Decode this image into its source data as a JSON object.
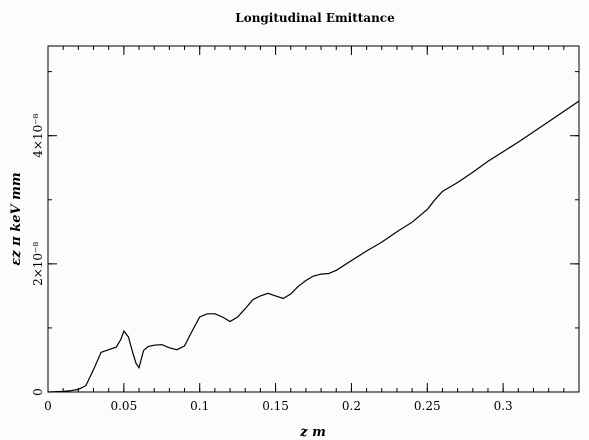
{
  "chart_data": {
    "type": "line",
    "title": "Longitudinal Emittance",
    "xlabel": "z m",
    "ylabel": "εz π keV mm",
    "xlim": [
      0,
      0.35
    ],
    "ylim": [
      0,
      5.4e-08
    ],
    "grid": false,
    "x_ticks": [
      {
        "value": 0,
        "label": "0"
      },
      {
        "value": 0.05,
        "label": "0.05"
      },
      {
        "value": 0.1,
        "label": "0.1"
      },
      {
        "value": 0.15,
        "label": "0.15"
      },
      {
        "value": 0.2,
        "label": "0.2"
      },
      {
        "value": 0.25,
        "label": "0.25"
      },
      {
        "value": 0.3,
        "label": "0.3"
      }
    ],
    "x_minor_step": 0.01,
    "y_ticks": [
      {
        "value": 0,
        "label": "0"
      },
      {
        "value": 2e-08,
        "label": "2×10⁻⁸"
      },
      {
        "value": 4e-08,
        "label": "4×10⁻⁸"
      }
    ],
    "y_minor_step": 1e-08,
    "series": [
      {
        "x": [
          0,
          0.01,
          0.015,
          0.02,
          0.025,
          0.03,
          0.035,
          0.04,
          0.045,
          0.048,
          0.05,
          0.053,
          0.056,
          0.058,
          0.06,
          0.063,
          0.066,
          0.07,
          0.075,
          0.08,
          0.085,
          0.09,
          0.095,
          0.1,
          0.105,
          0.11,
          0.115,
          0.12,
          0.125,
          0.13,
          0.135,
          0.14,
          0.145,
          0.15,
          0.155,
          0.16,
          0.165,
          0.17,
          0.175,
          0.18,
          0.185,
          0.19,
          0.2,
          0.21,
          0.22,
          0.23,
          0.24,
          0.25,
          0.255,
          0.26,
          0.265,
          0.27,
          0.28,
          0.29,
          0.3,
          0.31,
          0.32,
          0.33,
          0.34,
          0.35
        ],
        "values": [
          0,
          1e-10,
          2e-10,
          4e-10,
          1e-09,
          3.5e-09,
          6.2e-09,
          6.6e-09,
          7e-09,
          8.2e-09,
          9.5e-09,
          8.6e-09,
          6e-09,
          4.5e-09,
          3.8e-09,
          6.5e-09,
          7.1e-09,
          7.3e-09,
          7.4e-09,
          6.9e-09,
          6.6e-09,
          7.2e-09,
          9.5e-09,
          1.17e-08,
          1.22e-08,
          1.22e-08,
          1.17e-08,
          1.1e-08,
          1.17e-08,
          1.3e-08,
          1.44e-08,
          1.5e-08,
          1.54e-08,
          1.5e-08,
          1.46e-08,
          1.53e-08,
          1.65e-08,
          1.74e-08,
          1.81e-08,
          1.84e-08,
          1.85e-08,
          1.9e-08,
          2.05e-08,
          2.2e-08,
          2.34e-08,
          2.5e-08,
          2.65e-08,
          2.85e-08,
          3e-08,
          3.13e-08,
          3.2e-08,
          3.27e-08,
          3.43e-08,
          3.6e-08,
          3.75e-08,
          3.9e-08,
          4.06e-08,
          4.22e-08,
          4.38e-08,
          4.54e-08
        ]
      }
    ]
  }
}
